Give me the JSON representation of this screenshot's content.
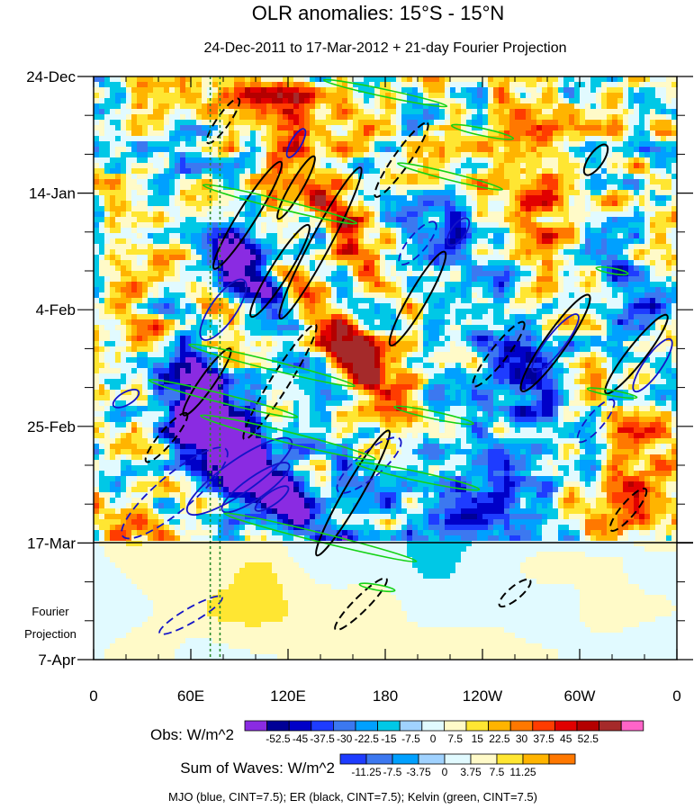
{
  "chart_data": {
    "type": "heatmap",
    "title": "OLR anomalies: 15°S - 15°N",
    "subtitle": "24-Dec-2011 to 17-Mar-2012 + 21-day Fourier Projection",
    "x_ticks": [
      "0",
      "60E",
      "120E",
      "180",
      "120W",
      "60W",
      "0"
    ],
    "x_tick_lon": [
      0,
      60,
      120,
      180,
      240,
      300,
      360
    ],
    "xlim": [
      0,
      360
    ],
    "y_ticks": [
      "24-Dec",
      "14-Jan",
      "4-Feb",
      "25-Feb",
      "17-Mar",
      "7-Apr"
    ],
    "y_tick_day": [
      0,
      21,
      42,
      63,
      84,
      105
    ],
    "ylim": [
      0,
      105
    ],
    "observation_end_day": 84,
    "projection_label_line1": "Fourier",
    "projection_label_line2": "Projection",
    "reference_lines_lon": [
      72,
      78
    ],
    "obs_colorbar": {
      "label": "Obs: W/m^2",
      "colors": [
        "#8a2be2",
        "#000096",
        "#0000c8",
        "#1e3cff",
        "#3c78f0",
        "#00a0ff",
        "#00c8e6",
        "#a0d2ff",
        "#e1faff",
        "#fffac8",
        "#ffe632",
        "#ffb400",
        "#ff7800",
        "#ff3c00",
        "#e10000",
        "#b40000",
        "#a52a2a",
        "#ff64c8"
      ],
      "levels": [
        "-52.5",
        "-45",
        "-37.5",
        "-30",
        "-22.5",
        "-15",
        "-7.5",
        "0",
        "7.5",
        "15",
        "22.5",
        "30",
        "37.5",
        "45",
        "52.5"
      ]
    },
    "waves_colorbar": {
      "label": "Sum of Waves: W/m^2",
      "colors": [
        "#1e3cff",
        "#3c78f0",
        "#00a0ff",
        "#a0d2ff",
        "#e1faff",
        "#fffac8",
        "#ffe632",
        "#ffb400",
        "#ff7800"
      ],
      "levels": [
        "-11.25",
        "-7.5",
        "-3.75",
        "0",
        "3.75",
        "7.5",
        "11.25"
      ]
    },
    "footnote": "MJO (blue, CINT=7.5); ER (black, CINT=7.5); Kelvin (green, CINT=7.5)",
    "series": [
      {
        "name": "MJO",
        "color": "#1414c8"
      },
      {
        "name": "ER",
        "color": "#000000"
      },
      {
        "name": "Kelvin",
        "color": "#14d214"
      }
    ],
    "grid": false
  }
}
